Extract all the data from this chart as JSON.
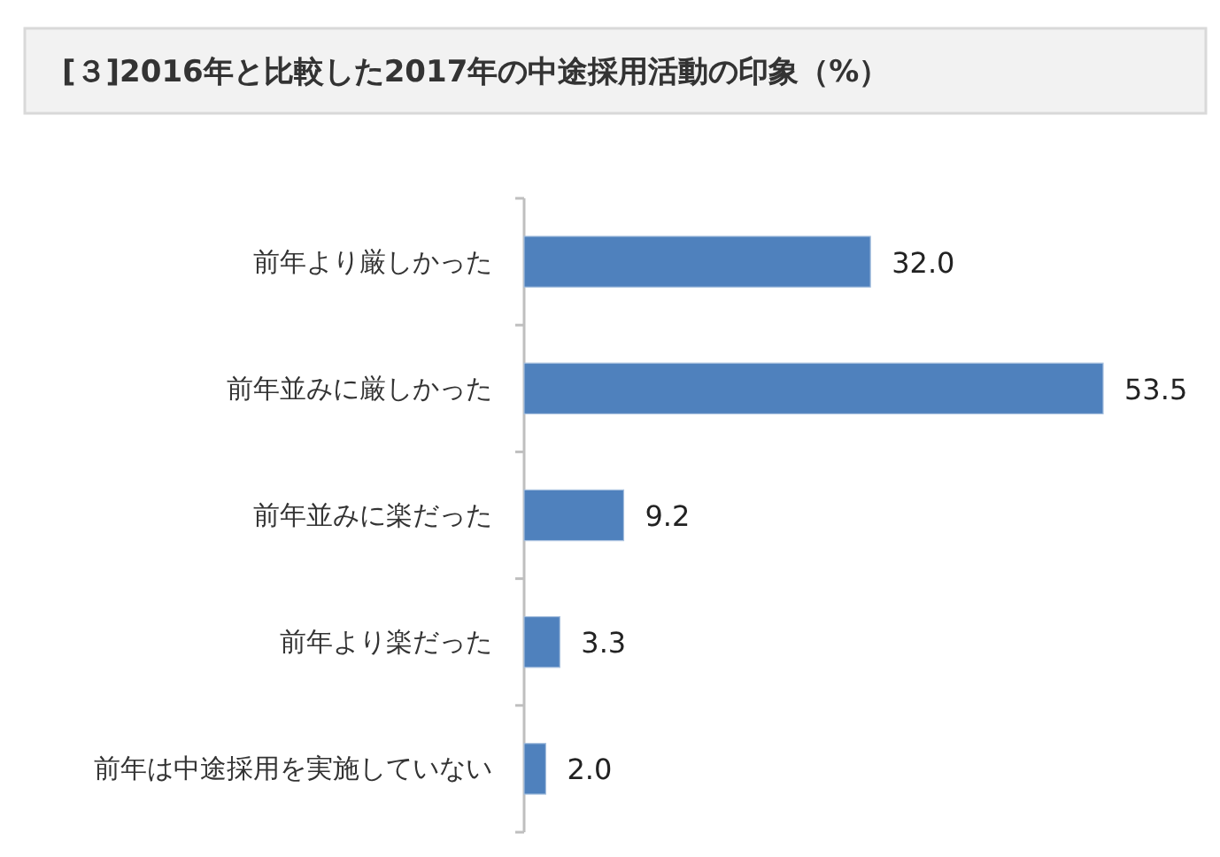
{
  "chart_data": {
    "type": "bar",
    "orientation": "horizontal",
    "title": "[３]2016年と比較した2017年の中途採用活動の印象（%）",
    "categories": [
      "前年より厳しかった",
      "前年並みに厳しかった",
      "前年並みに楽だった",
      "前年より楽だった",
      "前年は中途採用を実施していない"
    ],
    "values": [
      32.0,
      53.5,
      9.2,
      3.3,
      2.0
    ],
    "color": "#4f81bd",
    "value_labels": [
      "32.0",
      "53.5",
      "9.2",
      "3.3",
      "2.0"
    ]
  }
}
